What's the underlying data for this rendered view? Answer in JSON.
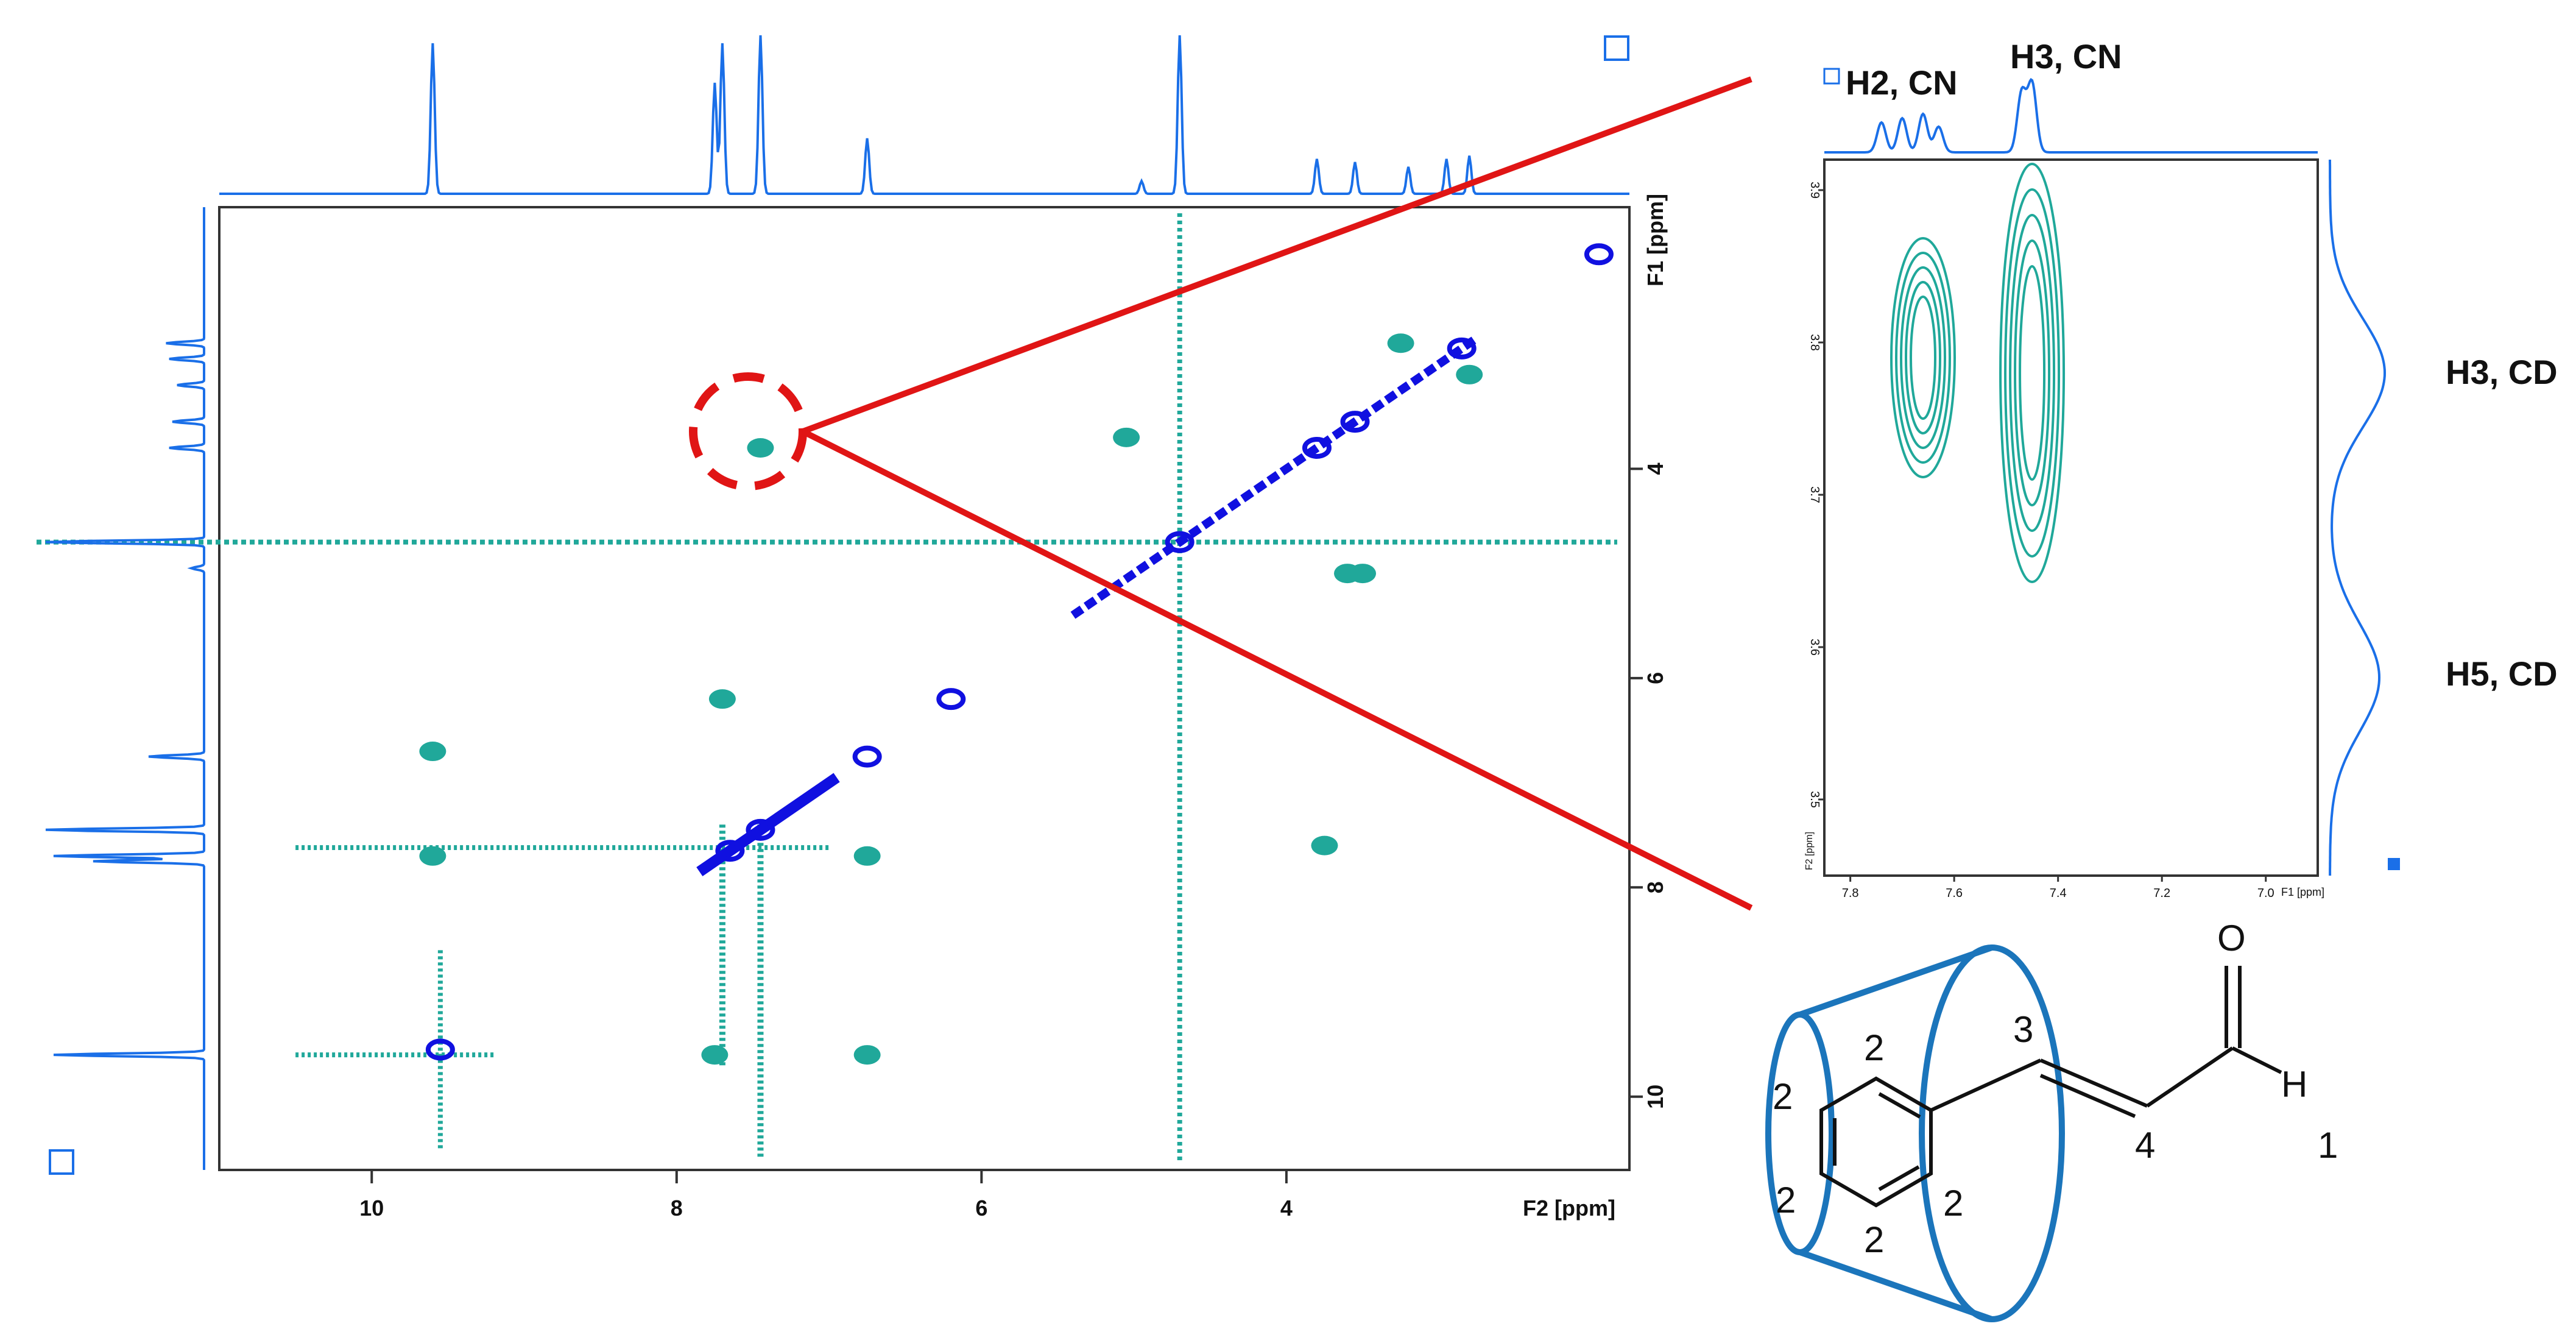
{
  "chart_data": [
    {
      "type": "scatter",
      "description_kind": "2D NMR contour spectrum",
      "x_axis_label": "F2 [ppm]",
      "y_axis_label": "F1 [ppm]",
      "x_ticks": [
        "10",
        "8",
        "6",
        "4"
      ],
      "y_ticks": [
        "4",
        "6",
        "8",
        "10"
      ],
      "x_range": [
        11.0,
        1.75
      ],
      "y_range": [
        1.5,
        10.7
      ],
      "colors": {
        "positive": "#1010e0",
        "negative": "#20a89a",
        "trace": "#1a6fe8",
        "zoom_line": "#e01515"
      },
      "x_trace_peaks": [
        {
          "x": 9.6,
          "h": 0.95
        },
        {
          "x": 7.7,
          "h": 0.95
        },
        {
          "x": 7.45,
          "h": 1.0
        },
        {
          "x": 7.75,
          "h": 0.7
        },
        {
          "x": 6.75,
          "h": 0.35
        },
        {
          "x": 4.95,
          "h": 0.08
        },
        {
          "x": 4.7,
          "h": 1.0
        },
        {
          "x": 3.8,
          "h": 0.22
        },
        {
          "x": 3.55,
          "h": 0.2
        },
        {
          "x": 3.2,
          "h": 0.17
        },
        {
          "x": 2.95,
          "h": 0.22
        },
        {
          "x": 2.8,
          "h": 0.24
        }
      ],
      "diagonal_positive": [
        {
          "x": 9.55,
          "y": 9.55
        },
        {
          "x": 7.65,
          "y": 7.65
        },
        {
          "x": 7.45,
          "y": 7.45
        },
        {
          "x": 6.75,
          "y": 6.75
        },
        {
          "x": 6.2,
          "y": 6.2
        },
        {
          "x": 4.7,
          "y": 4.7
        },
        {
          "x": 3.8,
          "y": 3.8
        },
        {
          "x": 3.55,
          "y": 3.55
        },
        {
          "x": 2.85,
          "y": 2.85
        },
        {
          "x": 1.95,
          "y": 1.95
        }
      ],
      "crosspeaks_negative": [
        {
          "x": 9.6,
          "y": 7.7
        },
        {
          "x": 9.6,
          "y": 6.7
        },
        {
          "x": 7.75,
          "y": 9.6
        },
        {
          "x": 6.75,
          "y": 9.6
        },
        {
          "x": 7.7,
          "y": 6.2
        },
        {
          "x": 6.75,
          "y": 7.7
        },
        {
          "x": 7.45,
          "y": 3.8
        },
        {
          "x": 5.05,
          "y": 3.7
        },
        {
          "x": 3.75,
          "y": 7.6
        },
        {
          "x": 3.6,
          "y": 5.0
        },
        {
          "x": 3.25,
          "y": 2.8
        },
        {
          "x": 2.8,
          "y": 3.1
        },
        {
          "x": 3.5,
          "y": 5.0
        }
      ]
    },
    {
      "type": "scatter",
      "description_kind": "zoomed 2D NMR region",
      "x_axis_label": "F1 [ppm]",
      "y_axis_label": "F2 [ppm]",
      "x_ticks": [
        "7.8",
        "7.6",
        "7.4",
        "7.2",
        "7.0"
      ],
      "y_ticks": [
        "3.9",
        "3.8",
        "3.7",
        "3.6",
        "3.5"
      ],
      "x_range": [
        7.85,
        6.9
      ],
      "y_range": [
        3.92,
        3.45
      ],
      "crosspeaks_negative": [
        {
          "x": 7.66,
          "y": 3.79
        },
        {
          "x": 7.45,
          "y": 3.78
        }
      ],
      "annotations": [
        "H2, CN",
        "H3, CN",
        "H3, CD",
        "H5, CD"
      ],
      "colors": {
        "contour": "#20a89a",
        "trace": "#1a6fe8"
      }
    }
  ],
  "molecule": {
    "labels": [
      "2",
      "2",
      "2",
      "2",
      "2",
      "3",
      "4",
      "1",
      "H",
      "O"
    ]
  }
}
